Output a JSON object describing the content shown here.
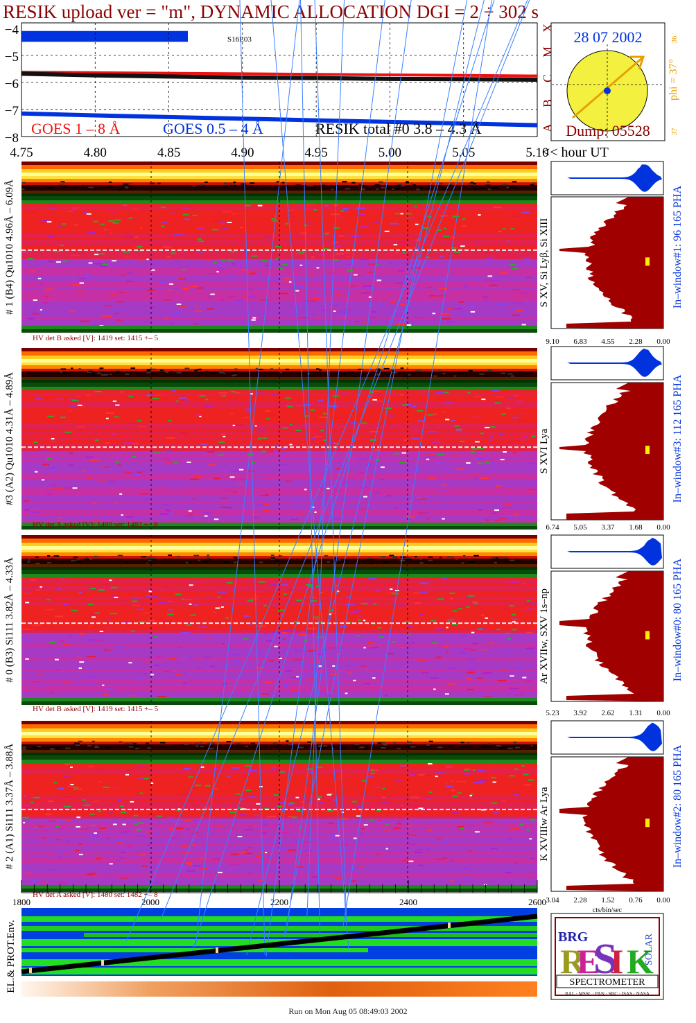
{
  "title": "RESIK upload ver = \"m\", DYNAMIC ALLOCATION  DGI =   2 ÷ 302 s",
  "footer": "Run on Mon Aug 05 08:49:03 2002",
  "colors": {
    "dark_red": "#8b0000",
    "blue": "#0033dd",
    "fill_red": "#a00000",
    "gold": "#e8a000",
    "sun": "#f4f040",
    "green": "#22cc22",
    "axis_green": "#1a8a1a"
  },
  "goes": {
    "label_red": "GOES 1 – 8 Å",
    "label_blue": "GOES 0.5 – 4 Å",
    "label_black": "RESIK total #0  3.8 – 4.3 Å",
    "flare_label": "S16E03",
    "y_ticks": [
      "−4",
      "−5",
      "−6",
      "−7",
      "−8"
    ],
    "class_letters": [
      "X",
      "M",
      "C",
      "B",
      "A"
    ],
    "x_ticks": [
      "4.75",
      "4.80",
      "4.85",
      "4.90",
      "4.95",
      "5.00",
      "5.05",
      "5.10"
    ],
    "x_unit": "<< hour UT"
  },
  "sun": {
    "date": "28 07 2002",
    "dump": "Dump: 05528",
    "phi": "phi = 37°",
    "tick_top": "36",
    "tick_bottom": "37"
  },
  "panels": [
    {
      "left_label": "# 1 (B4) Qu1010 4.96Å – 6.09Å",
      "right_label": "In–window#1:   96 165  PHA",
      "line_label": "S XV, Si Lyβ, Si XIII",
      "hv": "HV det B asked [V]:  1419 set:  1415  +–    5",
      "ticks": [
        "9.10",
        "6.83",
        "4.55",
        "2.28",
        "0.00"
      ]
    },
    {
      "left_label": "#3 (A2) Qu1010  4.31Å – 4.89Å",
      "right_label": "In–window#3:  112 165  PHA",
      "line_label": "S XVI Lya",
      "hv": "HV det A asked [V]:  1480 set:  1482  +–    8",
      "ticks": [
        "6.74",
        "5.05",
        "3.37",
        "1.68",
        "0.00"
      ]
    },
    {
      "left_label": "# 0 (B3) Si111  3.82Å – 4.33Å",
      "right_label": "In–window#0:   80 165  PHA",
      "line_label": "Ar XVIIw,  SXV 1s–np",
      "hv": "HV det B asked [V]:  1419 set:  1415  +–    5",
      "ticks": [
        "5.23",
        "3.92",
        "2.62",
        "1.31",
        "0.00"
      ]
    },
    {
      "left_label": "# 2 (A1) Si111  3.37Å – 3.88Å",
      "right_label": "In–window#2:   80 165  PHA",
      "line_label": "K XVIIIw  Ar Lya",
      "hv": "HV det A asked [V]:  1480 set:  1482  +–    8",
      "ticks": [
        "3.04",
        "2.28",
        "1.52",
        "0.76",
        "0.00"
      ]
    }
  ],
  "cts_label": "cts/bin/sec",
  "bottom_axis": {
    "ticks": [
      "1800",
      "2000",
      "2200",
      "2400",
      "2600"
    ]
  },
  "env_label": "EL.& PROT.Env.",
  "logo": {
    "letters": "RESIK",
    "small_left": "BRG",
    "small_right": "SOLAR",
    "banner": "SPECTROMETER",
    "credits": "RAL · MSSL · PAN · SRC · ISAS · NASA"
  },
  "chart_data": {
    "type": "line",
    "title": "RESIK upload ver = \"m\", DYNAMIC ALLOCATION  DGI =   2 ÷ 302 s",
    "xlabel": "<< hour UT",
    "xlim": [
      4.75,
      5.1
    ],
    "ylim": [
      -8,
      -3.8
    ],
    "x": [
      4.75,
      4.8,
      4.85,
      4.9,
      4.95,
      5.0,
      5.05,
      5.1
    ],
    "series": [
      {
        "name": "GOES 1 – 8 Å",
        "values": [
          -5.62,
          -5.64,
          -5.66,
          -5.68,
          -5.7,
          -5.72,
          -5.74,
          -5.76
        ]
      },
      {
        "name": "GOES 0.5 – 4 Å",
        "values": [
          -7.15,
          -7.22,
          -7.28,
          -7.34,
          -7.4,
          -7.46,
          -7.52,
          -7.58
        ]
      },
      {
        "name": "RESIK total #0  3.8 – 4.3 Å",
        "values": [
          -5.68,
          -5.74,
          -5.78,
          -5.82,
          -5.84,
          -5.87,
          -5.88,
          -5.9
        ]
      }
    ]
  }
}
